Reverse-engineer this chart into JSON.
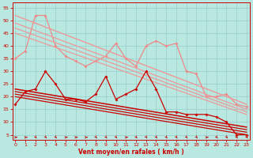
{
  "background_color": "#b8e8e0",
  "grid_color": "#99cccc",
  "xlabel": "Vent moyen/en rafales ( km/h )",
  "xlabel_color": "#cc0000",
  "tick_color": "#cc0000",
  "x_ticks": [
    0,
    1,
    2,
    3,
    4,
    5,
    6,
    7,
    8,
    9,
    10,
    11,
    12,
    13,
    14,
    15,
    16,
    17,
    18,
    19,
    20,
    21,
    22,
    23
  ],
  "y_ticks": [
    5,
    10,
    15,
    20,
    25,
    30,
    35,
    40,
    45,
    50,
    55
  ],
  "ylim": [
    3,
    57
  ],
  "xlim": [
    -0.3,
    23.3
  ],
  "series": [
    {
      "name": "pink_jagged_high",
      "color": "#ee8888",
      "lw": 0.9,
      "marker": "D",
      "ms": 2.0,
      "data_x": [
        0,
        1,
        2,
        3,
        4,
        5,
        6,
        7,
        8,
        9,
        10,
        11,
        12,
        13,
        14,
        15,
        16,
        17,
        18,
        19,
        20,
        21,
        22,
        23
      ],
      "data_y": [
        35,
        38,
        52,
        52,
        40,
        36,
        34,
        32,
        34,
        36,
        41,
        35,
        32,
        40,
        42,
        40,
        41,
        30,
        29,
        20,
        20,
        21,
        17,
        16
      ]
    },
    {
      "name": "pink_diag_top",
      "color": "#ee9999",
      "lw": 1.0,
      "marker": null,
      "ms": 0,
      "data_x": [
        0,
        23
      ],
      "data_y": [
        52,
        17
      ]
    },
    {
      "name": "pink_diag_2",
      "color": "#ee9999",
      "lw": 0.9,
      "marker": null,
      "ms": 0,
      "data_x": [
        0,
        23
      ],
      "data_y": [
        49,
        15
      ]
    },
    {
      "name": "pink_diag_3",
      "color": "#ee9999",
      "lw": 0.9,
      "marker": null,
      "ms": 0,
      "data_x": [
        0,
        23
      ],
      "data_y": [
        47,
        14
      ]
    },
    {
      "name": "pink_diag_4",
      "color": "#ee9999",
      "lw": 0.9,
      "marker": null,
      "ms": 0,
      "data_x": [
        0,
        23
      ],
      "data_y": [
        45,
        13
      ]
    },
    {
      "name": "dark_red_jagged",
      "color": "#cc0000",
      "lw": 0.9,
      "marker": "D",
      "ms": 2.0,
      "data_x": [
        0,
        1,
        2,
        3,
        4,
        5,
        6,
        7,
        8,
        9,
        10,
        11,
        12,
        13,
        14,
        15,
        16,
        17,
        18,
        19,
        20,
        21,
        22,
        23
      ],
      "data_y": [
        17,
        22,
        23,
        30,
        25,
        19,
        19,
        18,
        21,
        28,
        19,
        21,
        23,
        30,
        23,
        14,
        14,
        13,
        13,
        13,
        12,
        10,
        5,
        5
      ]
    },
    {
      "name": "dark_diag_top",
      "color": "#cc0000",
      "lw": 1.1,
      "marker": null,
      "ms": 0,
      "data_x": [
        0,
        23
      ],
      "data_y": [
        23,
        8
      ]
    },
    {
      "name": "dark_diag_2",
      "color": "#cc0000",
      "lw": 0.9,
      "marker": null,
      "ms": 0,
      "data_x": [
        0,
        23
      ],
      "data_y": [
        22,
        7
      ]
    },
    {
      "name": "dark_diag_3",
      "color": "#cc0000",
      "lw": 0.9,
      "marker": null,
      "ms": 0,
      "data_x": [
        0,
        23
      ],
      "data_y": [
        21,
        6
      ]
    },
    {
      "name": "dark_diag_4",
      "color": "#cc0000",
      "lw": 0.9,
      "marker": null,
      "ms": 0,
      "data_x": [
        0,
        23
      ],
      "data_y": [
        20,
        5
      ]
    }
  ],
  "wind_dirs": [
    1,
    1,
    2,
    2,
    2,
    1,
    1,
    1,
    2,
    2,
    2,
    1,
    2,
    2,
    2,
    2,
    2,
    2,
    2,
    1,
    2,
    2,
    2,
    2
  ],
  "wind_y": 4.0
}
